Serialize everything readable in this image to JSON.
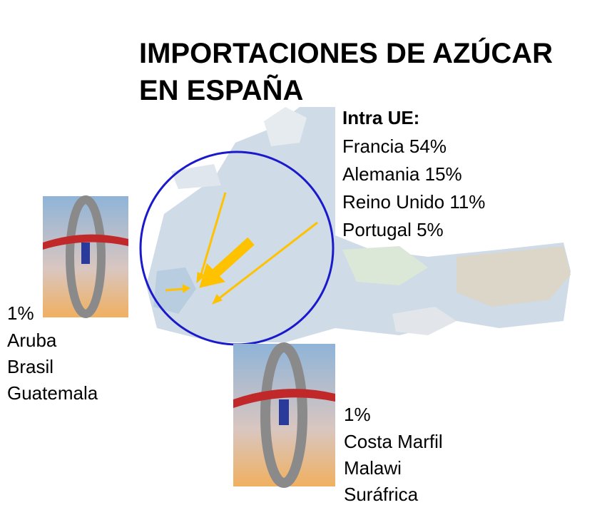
{
  "title": [
    "IMPORTACIONES DE AZÚCAR",
    "EN ESPAÑA"
  ],
  "intra_ue": {
    "heading": "Intra UE:",
    "items": [
      "Francia 54%",
      "Alemania 15%",
      "Reino Unido 11%",
      "Portugal 5%"
    ]
  },
  "extra_left": {
    "share": "1%",
    "countries": [
      "Aruba",
      "Brasil",
      "Guatemala"
    ]
  },
  "extra_bottom": {
    "share": "1%",
    "countries": [
      "Costa Marfil",
      "Malawi",
      "Suráfrica"
    ]
  }
}
